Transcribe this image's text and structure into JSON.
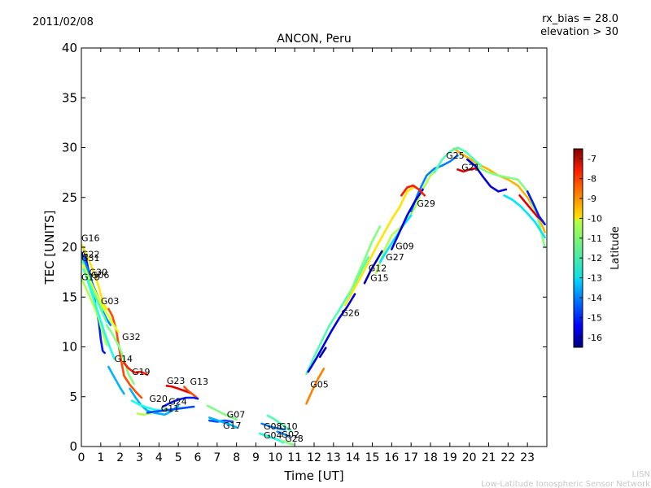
{
  "header": {
    "date": "2011/02/08",
    "rx_bias": "rx_bias = 28.0",
    "elevation": "elevation > 30",
    "title": "ANCON, Peru"
  },
  "footer": {
    "line1": "LISN",
    "line2": "Low-Latitude Ionospheric Sensor Network"
  },
  "chart_data": {
    "type": "line",
    "title": "ANCON, Peru",
    "xlabel": "Time [UT]",
    "ylabel": "TEC [UNITS]",
    "xlim": [
      0,
      24
    ],
    "ylim": [
      0,
      40
    ],
    "xticks": [
      0,
      1,
      2,
      3,
      4,
      5,
      6,
      7,
      8,
      9,
      10,
      11,
      12,
      13,
      14,
      15,
      16,
      17,
      18,
      19,
      20,
      21,
      22,
      23
    ],
    "yticks": [
      0,
      5,
      10,
      15,
      20,
      25,
      30,
      35,
      40
    ],
    "colorbar": {
      "label": "Latitude",
      "min": -16.5,
      "max": -6.5,
      "ticks": [
        -7,
        -8,
        -9,
        -10,
        -11,
        -12,
        -13,
        -14,
        -15,
        -16
      ]
    },
    "series": [
      {
        "name": "G16",
        "label_pos": [
          0.0,
          20.6
        ],
        "lat": -10,
        "x": [
          0,
          0.3,
          0.6,
          0.9,
          1.1,
          1.3
        ],
        "y": [
          20.3,
          19.1,
          17.7,
          16.0,
          14.5,
          13.8
        ]
      },
      {
        "name": "G22",
        "label_pos": [
          0.0,
          19.0
        ],
        "lat": -14,
        "x": [
          0,
          0.3,
          0.6,
          0.9,
          1.1,
          1.3,
          1.5
        ],
        "y": [
          19.5,
          17.9,
          16.2,
          14.8,
          13.6,
          12.8,
          12.2
        ]
      },
      {
        "name": "G31",
        "label_pos": [
          0.0,
          18.6
        ],
        "lat": -12,
        "x": [
          0,
          0.3,
          0.6,
          0.9,
          1.1
        ],
        "y": [
          18.9,
          17.4,
          15.9,
          14.6,
          13.7
        ]
      },
      {
        "name": "G30",
        "label_pos": [
          0.4,
          17.2
        ],
        "lat": -10.5,
        "x": [
          0.1,
          0.4,
          0.7,
          1.0,
          1.3,
          1.6,
          1.9
        ],
        "y": [
          18.2,
          16.8,
          15.6,
          14.4,
          13.4,
          12.4,
          11.5
        ]
      },
      {
        "name": "G06",
        "label_pos": [
          0.5,
          16.9
        ],
        "lat": -12,
        "x": [
          0.1,
          0.4,
          0.7,
          1.0,
          1.3
        ],
        "y": [
          17.8,
          16.4,
          15.1,
          13.8,
          12.5
        ]
      },
      {
        "name": "G18",
        "label_pos": [
          0.0,
          16.7
        ],
        "lat": -11,
        "x": [
          0,
          0.3,
          0.6,
          0.9,
          1.1,
          1.3
        ],
        "y": [
          16.9,
          15.6,
          14.3,
          12.8,
          11.4,
          10.2
        ]
      },
      {
        "name": "G03",
        "label_pos": [
          1.0,
          14.3
        ],
        "lat": -12.5,
        "x": [
          0.3,
          0.6,
          0.9,
          1.2,
          1.5,
          1.7
        ],
        "y": [
          16.8,
          15.0,
          13.2,
          11.4,
          9.8,
          8.8
        ]
      },
      {
        "name": "G32",
        "label_pos": [
          2.1,
          10.7
        ],
        "lat": -11.5,
        "x": [
          1.3,
          1.6,
          1.9,
          2.2,
          2.4,
          2.7
        ],
        "y": [
          12.2,
          11.3,
          10.2,
          8.8,
          7.4,
          6.3
        ]
      },
      {
        "name": "G14",
        "label_pos": [
          1.7,
          8.5
        ],
        "lat": -13.5,
        "x": [
          1.4,
          1.6,
          1.8,
          2.0,
          2.2
        ],
        "y": [
          8.0,
          7.3,
          6.6,
          5.9,
          5.3
        ]
      },
      {
        "name": "G19",
        "label_pos": [
          2.6,
          7.2
        ],
        "lat": -8,
        "x": [
          2.2,
          2.4,
          2.6,
          2.8,
          3.0,
          3.2,
          3.4
        ],
        "y": [
          8.4,
          7.9,
          7.6,
          7.4,
          7.5,
          7.4,
          7.2
        ]
      },
      {
        "name": "G23",
        "label_pos": [
          4.4,
          6.3
        ],
        "lat": -7.5,
        "x": [
          4.4,
          4.7,
          5.0,
          5.3,
          5.6
        ],
        "y": [
          6.1,
          6.0,
          5.8,
          5.6,
          5.4
        ]
      },
      {
        "name": "G13",
        "label_pos": [
          5.6,
          6.2
        ],
        "lat": -8.5,
        "x": [
          5.3,
          5.5,
          5.7,
          5.9,
          6.0
        ],
        "y": [
          6.0,
          5.6,
          5.3,
          5.0,
          4.8
        ]
      },
      {
        "name": "G20",
        "label_pos": [
          3.5,
          4.5
        ],
        "lat": -12.5,
        "x": [
          2.6,
          3.0,
          3.4,
          3.8,
          4.2,
          4.6
        ],
        "y": [
          4.6,
          4.2,
          3.9,
          3.7,
          3.6,
          3.7
        ]
      },
      {
        "name": "G24",
        "label_pos": [
          4.5,
          4.2
        ],
        "lat": -15,
        "x": [
          4.2,
          4.6,
          5.0,
          5.4,
          5.8,
          6.0
        ],
        "y": [
          4.0,
          4.4,
          4.7,
          4.9,
          4.9,
          4.8
        ]
      },
      {
        "name": "G11",
        "label_pos": [
          4.1,
          3.5
        ],
        "lat": -14.5,
        "x": [
          3.4,
          3.8,
          4.2,
          4.6,
          5.0,
          5.4,
          5.8
        ],
        "y": [
          3.4,
          3.5,
          3.6,
          3.7,
          3.8,
          3.9,
          4.0
        ]
      },
      {
        "name": "G07",
        "label_pos": [
          7.5,
          2.9
        ],
        "lat": -11.5,
        "x": [
          6.5,
          6.8,
          7.1,
          7.4,
          7.7,
          8.0
        ],
        "y": [
          4.1,
          3.8,
          3.5,
          3.2,
          3.0,
          2.7
        ]
      },
      {
        "name": "G17",
        "label_pos": [
          7.3,
          1.8
        ],
        "lat": -13.5,
        "x": [
          6.6,
          6.9,
          7.2,
          7.5,
          7.8,
          8.0
        ],
        "y": [
          2.9,
          2.7,
          2.5,
          2.3,
          2.1,
          1.9
        ]
      },
      {
        "name": "G08",
        "label_pos": [
          9.4,
          1.7
        ],
        "lat": -14,
        "x": [
          9.3,
          9.6,
          9.9,
          10.2,
          10.5
        ],
        "y": [
          2.3,
          2.1,
          1.9,
          1.8,
          1.7
        ]
      },
      {
        "name": "G10",
        "label_pos": [
          10.2,
          1.7
        ],
        "lat": -12,
        "x": [
          9.6,
          9.9,
          10.2,
          10.5,
          10.8
        ],
        "y": [
          3.1,
          2.8,
          2.4,
          2.0,
          1.6
        ]
      },
      {
        "name": "G04",
        "label_pos": [
          9.4,
          0.8
        ],
        "lat": -12.5,
        "x": [
          9.2,
          9.5,
          9.8,
          10.1,
          10.4
        ],
        "y": [
          1.3,
          1.1,
          0.9,
          0.7,
          0.4
        ]
      },
      {
        "name": "G02",
        "label_pos": [
          10.3,
          0.9
        ],
        "lat": -13.8,
        "x": [
          10.1,
          10.4,
          10.7
        ],
        "y": [
          1.5,
          1.3,
          1.0
        ]
      },
      {
        "name": "G28",
        "label_pos": [
          10.5,
          0.5
        ],
        "lat": -11.5,
        "x": [
          10.3,
          10.6,
          10.9
        ],
        "y": [
          0.6,
          0.4,
          0.2
        ]
      },
      {
        "name": "G05",
        "label_pos": [
          11.8,
          5.9
        ],
        "lat": -9,
        "x": [
          11.6,
          11.9,
          12.2,
          12.5
        ],
        "y": [
          4.3,
          5.6,
          6.8,
          7.8
        ]
      },
      {
        "name": "G26",
        "label_pos": [
          13.4,
          13.1
        ],
        "lat": -15.5,
        "x": [
          11.7,
          12.1,
          12.5,
          12.9,
          13.3,
          13.7,
          14.1
        ],
        "y": [
          7.5,
          8.8,
          10.2,
          11.6,
          12.9,
          14.0,
          15.3
        ]
      },
      {
        "name": "G15",
        "label_pos": [
          14.9,
          16.6
        ],
        "lat": -16,
        "x": [
          14.6,
          14.9,
          15.2,
          15.5
        ],
        "y": [
          16.4,
          17.6,
          18.6,
          19.6
        ]
      },
      {
        "name": "G12",
        "label_pos": [
          14.8,
          17.6
        ],
        "lat": -11.5,
        "x": [
          13.8,
          14.2,
          14.6,
          15.0,
          15.4
        ],
        "y": [
          15.2,
          17.0,
          18.8,
          20.6,
          22.1
        ]
      },
      {
        "name": "G27",
        "label_pos": [
          15.7,
          18.7
        ],
        "lat": -13,
        "x": [
          15.4,
          15.8,
          16.2,
          16.6,
          17.0
        ],
        "y": [
          18.5,
          19.8,
          21.0,
          22.2,
          23.2
        ]
      },
      {
        "name": "G09",
        "label_pos": [
          16.2,
          19.8
        ],
        "lat": -15.5,
        "x": [
          16.0,
          16.4,
          16.8,
          17.2,
          17.6
        ],
        "y": [
          19.8,
          21.5,
          23.2,
          24.6,
          25.8
        ]
      },
      {
        "name": "G29",
        "label_pos": [
          17.3,
          24.1
        ],
        "lat": -8,
        "x": [
          16.5,
          16.8,
          17.1,
          17.4,
          17.7
        ],
        "y": [
          25.2,
          26.0,
          26.2,
          25.8,
          25.2
        ]
      },
      {
        "name": "G25",
        "label_pos": [
          18.8,
          28.9
        ],
        "lat": -12,
        "x": [
          18.2,
          18.6,
          19.0,
          19.4,
          19.8,
          20.2,
          20.6
        ],
        "y": [
          27.5,
          28.8,
          29.6,
          30.0,
          29.6,
          28.9,
          28.2
        ]
      },
      {
        "name": "G21",
        "label_pos": [
          19.6,
          27.7
        ],
        "lat": -7.5,
        "x": [
          19.4,
          19.7,
          20.0,
          20.3
        ],
        "y": [
          27.8,
          27.6,
          27.8,
          27.9
        ]
      }
    ],
    "extra_tracks": [
      {
        "lat": -9.5,
        "x": [
          19.2,
          19.6,
          20.0,
          20.5,
          21.0,
          21.5,
          22.0,
          22.5,
          23.0,
          23.5,
          23.9
        ],
        "y": [
          29.9,
          29.4,
          28.9,
          28.3,
          27.8,
          27.2,
          26.8,
          26.2,
          25.0,
          23.4,
          21.5
        ]
      },
      {
        "lat": -11.5,
        "x": [
          20.0,
          20.5,
          21.0,
          21.5,
          22.0,
          22.5,
          23.0,
          23.5,
          23.9
        ],
        "y": [
          28.5,
          28.0,
          27.5,
          27.2,
          27.0,
          26.8,
          25.6,
          23.2,
          20.0
        ]
      },
      {
        "lat": -15.5,
        "x": [
          19.9,
          20.3,
          20.7,
          21.1,
          21.5,
          21.9
        ],
        "y": [
          28.8,
          28.2,
          27.1,
          26.1,
          25.6,
          25.8
        ]
      },
      {
        "lat": -13,
        "x": [
          21.8,
          22.2,
          22.6,
          23.0,
          23.4,
          23.9
        ],
        "y": [
          25.2,
          24.8,
          24.2,
          23.4,
          22.5,
          21.0
        ]
      },
      {
        "lat": -7.5,
        "x": [
          22.6,
          22.9,
          23.2,
          23.5,
          23.8
        ],
        "y": [
          25.2,
          24.5,
          23.8,
          23.1,
          22.6
        ]
      },
      {
        "lat": -15,
        "x": [
          23.0,
          23.3,
          23.6,
          23.9
        ],
        "y": [
          25.6,
          24.4,
          23.1,
          22.3
        ]
      },
      {
        "lat": -12,
        "x": [
          11.6,
          12.0,
          12.4,
          12.8,
          13.2,
          13.6,
          14.0,
          14.4,
          14.8
        ],
        "y": [
          7.3,
          9.0,
          10.6,
          12.2,
          13.4,
          14.7,
          16.0,
          17.5,
          19.0
        ]
      },
      {
        "lat": -10,
        "x": [
          13.6,
          14.0,
          14.4,
          14.8,
          15.2,
          15.6,
          16.0,
          16.4,
          16.8,
          17.2
        ],
        "y": [
          14.2,
          15.6,
          17.0,
          18.5,
          20.0,
          21.4,
          22.8,
          24.0,
          25.6,
          26.1
        ]
      },
      {
        "lat": -11,
        "x": [
          15.2,
          15.6,
          16.0,
          16.4,
          16.8,
          17.2,
          17.6,
          18.0,
          18.4
        ],
        "y": [
          17.4,
          19.6,
          21.2,
          21.9,
          22.7,
          24.0,
          25.8,
          27.2,
          28.0
        ]
      },
      {
        "lat": -14,
        "x": [
          17.0,
          17.4,
          17.8,
          18.2,
          18.6,
          19.0,
          19.4
        ],
        "y": [
          23.6,
          25.6,
          27.2,
          27.9,
          28.2,
          28.6,
          29.2
        ]
      },
      {
        "lat": -16,
        "x": [
          12.3,
          12.6
        ],
        "y": [
          9.0,
          9.9
        ]
      },
      {
        "lat": -8.5,
        "x": [
          1.4,
          1.6,
          1.8,
          2.0,
          2.2,
          2.5,
          2.8,
          3.1
        ],
        "y": [
          13.8,
          13.1,
          11.7,
          9.2,
          7.1,
          6.2,
          5.5,
          4.9
        ]
      },
      {
        "lat": -15,
        "x": [
          0.1,
          0.3,
          0.5,
          0.7,
          0.9,
          1.0,
          1.1,
          1.2
        ],
        "y": [
          20.0,
          18.3,
          16.4,
          14.5,
          12.5,
          10.8,
          9.6,
          9.4
        ]
      },
      {
        "lat": -13.5,
        "x": [
          2.5,
          2.8,
          3.1,
          3.4,
          3.7,
          4.0,
          4.3,
          4.6,
          5.0
        ],
        "y": [
          5.8,
          4.9,
          4.1,
          3.6,
          3.4,
          3.3,
          3.2,
          3.5,
          4.1
        ]
      },
      {
        "lat": -11,
        "x": [
          2.9,
          3.2,
          3.5,
          3.8,
          4.1,
          4.4
        ],
        "y": [
          3.3,
          3.2,
          3.3,
          3.5,
          3.6,
          3.8
        ]
      },
      {
        "lat": -14.5,
        "x": [
          6.6,
          7.0,
          7.4,
          7.8
        ],
        "y": [
          2.6,
          2.5,
          2.6,
          2.5
        ]
      }
    ]
  }
}
